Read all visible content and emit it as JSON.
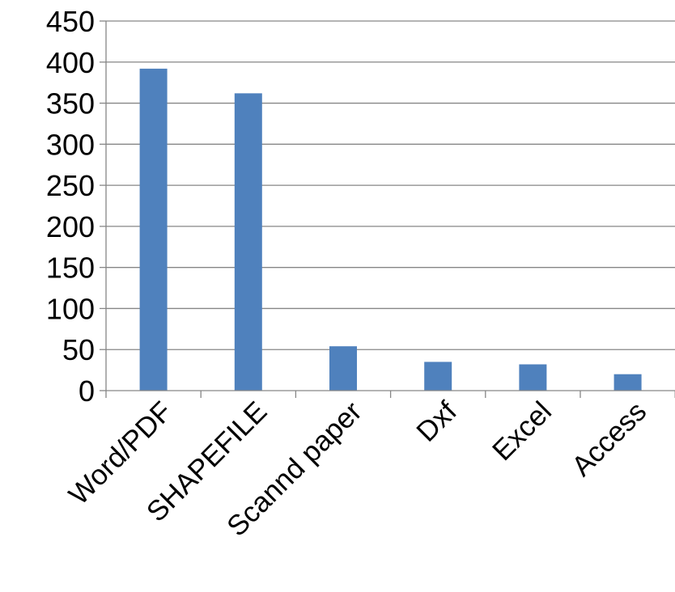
{
  "chart_data": {
    "type": "bar",
    "title": "",
    "xlabel": "",
    "ylabel": "",
    "categories": [
      "Word/PDF",
      "SHAPEFILE",
      "Scannd paper",
      "Dxf",
      "Excel",
      "Access"
    ],
    "values": [
      392,
      362,
      54,
      35,
      32,
      20
    ],
    "ylim": [
      0,
      450
    ],
    "yticks": [
      "0",
      "50",
      "100",
      "150",
      "200",
      "250",
      "300",
      "350",
      "400",
      "450"
    ],
    "grid": true,
    "legend": "none",
    "bar_color": "#4f81bd",
    "grid_color": "#868686",
    "axis_color": "#868686"
  }
}
